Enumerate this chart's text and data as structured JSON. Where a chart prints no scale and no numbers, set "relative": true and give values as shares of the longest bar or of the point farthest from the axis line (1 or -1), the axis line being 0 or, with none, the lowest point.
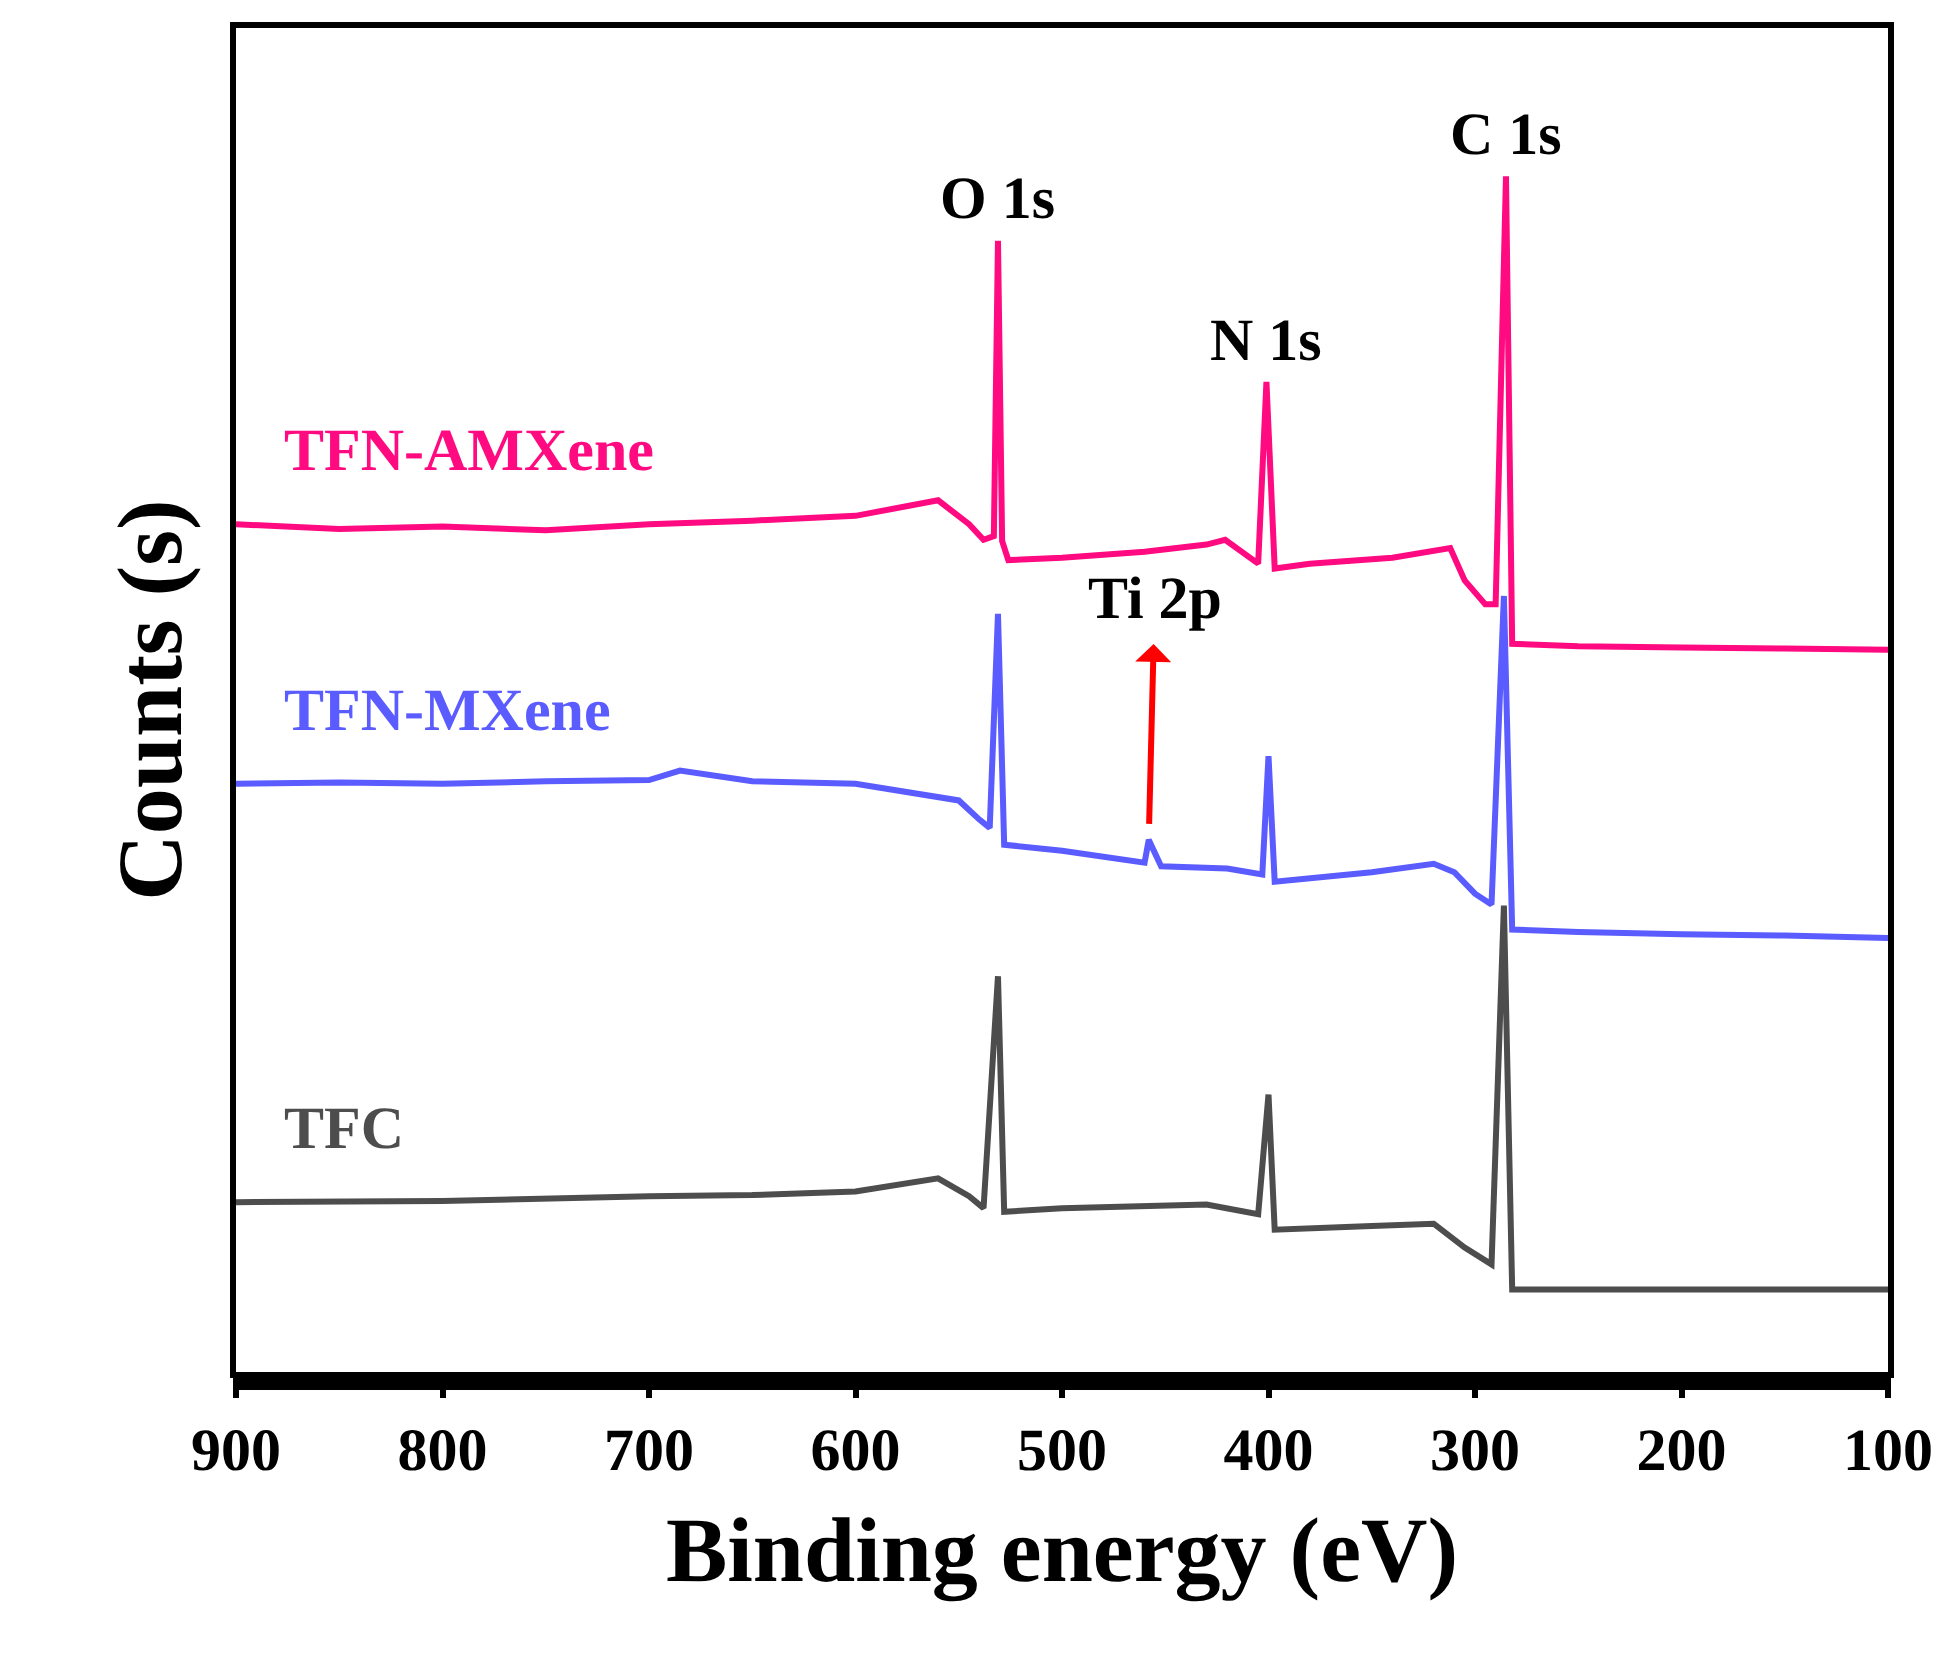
{
  "chart_data": {
    "type": "line",
    "relative": true,
    "xlabel": "Binding energy (eV)",
    "ylabel": "Counts (s)",
    "xlim": [
      900,
      100
    ],
    "xticks": [
      900,
      800,
      700,
      600,
      500,
      400,
      300,
      200,
      100
    ],
    "legend": false,
    "grid": false,
    "marker": "none",
    "line_style": "solid",
    "annotations": [
      {
        "text": "O 1s",
        "x": 531,
        "y": 0.946
      },
      {
        "text": "N 1s",
        "x": 401,
        "y": 0.828
      },
      {
        "text": "C 1s",
        "x": 285,
        "y": 1
      },
      {
        "text": "Ti 2p",
        "x": 458,
        "y": 0.445
      }
    ],
    "series": [
      {
        "name": "TFN-AMXene",
        "color": "#ff0a80",
        "x": [
          900,
          850,
          800,
          750,
          700,
          650,
          600,
          560,
          545,
          538,
          533,
          531,
          529,
          526,
          500,
          460,
          430,
          421,
          405,
          401,
          397,
          380,
          340,
          312,
          305,
          295,
          290,
          285,
          282,
          250,
          200,
          150,
          100
        ],
        "values": [
          0.709,
          0.705,
          0.707,
          0.704,
          0.709,
          0.712,
          0.716,
          0.729,
          0.709,
          0.696,
          0.699,
          0.946,
          0.695,
          0.679,
          0.681,
          0.686,
          0.692,
          0.696,
          0.676,
          0.828,
          0.672,
          0.676,
          0.681,
          0.689,
          0.662,
          0.642,
          0.642,
          1,
          0.609,
          0.607,
          0.606,
          0.605,
          0.604
        ]
      },
      {
        "name": "TFN-MXene",
        "color": "#5a5cff",
        "x": [
          900,
          850,
          800,
          750,
          700,
          685,
          650,
          600,
          550,
          540,
          535,
          531,
          528,
          500,
          460,
          458,
          452,
          420,
          403,
          400,
          397,
          350,
          320,
          310,
          300,
          292,
          286,
          282,
          250,
          200,
          150,
          100
        ],
        "values": [
          0.492,
          0.493,
          0.492,
          0.494,
          0.495,
          0.503,
          0.494,
          0.492,
          0.478,
          0.462,
          0.455,
          0.634,
          0.441,
          0.436,
          0.426,
          0.445,
          0.423,
          0.421,
          0.416,
          0.515,
          0.41,
          0.418,
          0.425,
          0.418,
          0.4,
          0.391,
          0.649,
          0.37,
          0.368,
          0.366,
          0.365,
          0.363
        ]
      },
      {
        "name": "TFC",
        "color": "#4d4d4d",
        "x": [
          900,
          800,
          700,
          650,
          600,
          560,
          545,
          538,
          531,
          528,
          500,
          430,
          405,
          400,
          397,
          350,
          320,
          305,
          292,
          286,
          282,
          250,
          200,
          150,
          100
        ],
        "values": [
          0.142,
          0.143,
          0.147,
          0.148,
          0.151,
          0.162,
          0.147,
          0.137,
          0.331,
          0.134,
          0.137,
          0.14,
          0.132,
          0.232,
          0.119,
          0.122,
          0.124,
          0.104,
          0.09,
          0.39,
          0.069,
          0.069,
          0.069,
          0.069,
          0.069
        ]
      }
    ]
  }
}
